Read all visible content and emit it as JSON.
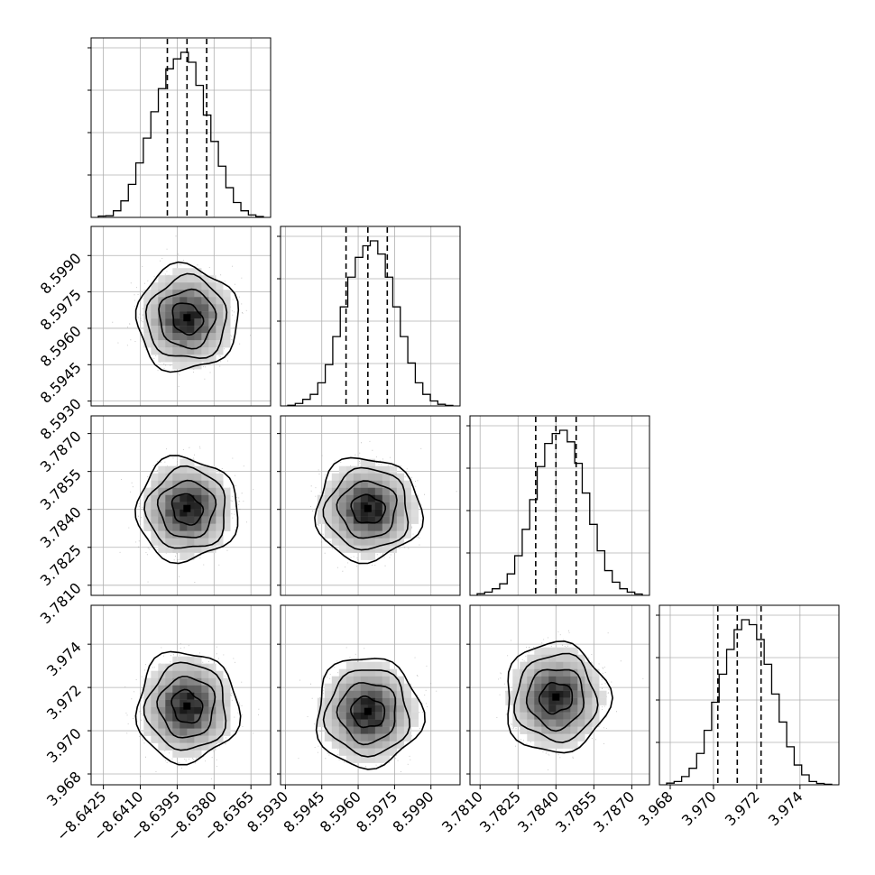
{
  "figure": {
    "type": "corner-plot",
    "colors": {
      "hist": "#000000",
      "grid": "#b0b0b0",
      "scatter": "#8c8c8c",
      "contour": "#000000"
    }
  },
  "chart_data": {
    "type": "corner",
    "parameters": [
      {
        "range": [
          -8.643,
          -8.6357
        ],
        "ticks": [
          "−8.6425",
          "−8.6410",
          "−8.6395",
          "−8.6380",
          "−8.6365"
        ],
        "tick_values": [
          -8.6425,
          -8.641,
          -8.6395,
          -8.638,
          -8.6365
        ],
        "quantiles": [
          -8.6399,
          -8.6391,
          -8.6383
        ],
        "mean": -8.6391,
        "sd": 0.00081
      },
      {
        "range": [
          8.5928,
          8.6002
        ],
        "ticks": [
          "8.5930",
          "8.5945",
          "8.5960",
          "8.5975",
          "8.5990"
        ],
        "tick_values": [
          8.593,
          8.5945,
          8.596,
          8.5975,
          8.599
        ],
        "quantiles": [
          8.5955,
          8.5964,
          8.5972
        ],
        "mean": 8.5964,
        "sd": 0.00085
      },
      {
        "range": [
          3.7806,
          3.7877
        ],
        "ticks": [
          "3.7810",
          "3.7825",
          "3.7840",
          "3.7855",
          "3.7870"
        ],
        "tick_values": [
          3.781,
          3.7825,
          3.784,
          3.7855,
          3.787
        ],
        "quantiles": [
          3.7832,
          3.784,
          3.7848
        ],
        "mean": 3.784,
        "sd": 0.0008
      },
      {
        "range": [
          3.9675,
          3.9758
        ],
        "ticks": [
          "3.968",
          "3.970",
          "3.972",
          "3.974"
        ],
        "tick_values": [
          3.968,
          3.97,
          3.972,
          3.974
        ],
        "quantiles": [
          3.9702,
          3.9711,
          3.9722
        ],
        "mean": 3.9711,
        "sd": 0.001
      }
    ],
    "histograms": [
      [
        0.008,
        0.01,
        0.04,
        0.1,
        0.2,
        0.33,
        0.48,
        0.64,
        0.78,
        0.9,
        0.96,
        1.0,
        0.94,
        0.8,
        0.62,
        0.46,
        0.31,
        0.18,
        0.09,
        0.04,
        0.015,
        0.005
      ],
      [
        0.004,
        0.015,
        0.04,
        0.07,
        0.14,
        0.25,
        0.42,
        0.6,
        0.78,
        0.9,
        0.97,
        1.0,
        0.92,
        0.78,
        0.6,
        0.42,
        0.26,
        0.14,
        0.07,
        0.03,
        0.01,
        0.003
      ],
      [
        0.01,
        0.02,
        0.04,
        0.07,
        0.13,
        0.24,
        0.4,
        0.58,
        0.78,
        0.92,
        0.98,
        1.0,
        0.93,
        0.8,
        0.62,
        0.43,
        0.27,
        0.15,
        0.08,
        0.04,
        0.02,
        0.008
      ],
      [
        0.01,
        0.02,
        0.05,
        0.1,
        0.19,
        0.33,
        0.5,
        0.67,
        0.82,
        0.94,
        1.0,
        0.97,
        0.88,
        0.73,
        0.55,
        0.38,
        0.23,
        0.12,
        0.06,
        0.02,
        0.008,
        0.003
      ]
    ],
    "histogram_ticks": 4,
    "grid": true,
    "contour_levels": 4,
    "quantile_style": "dashed",
    "xlabel": "",
    "ylabel": ""
  }
}
